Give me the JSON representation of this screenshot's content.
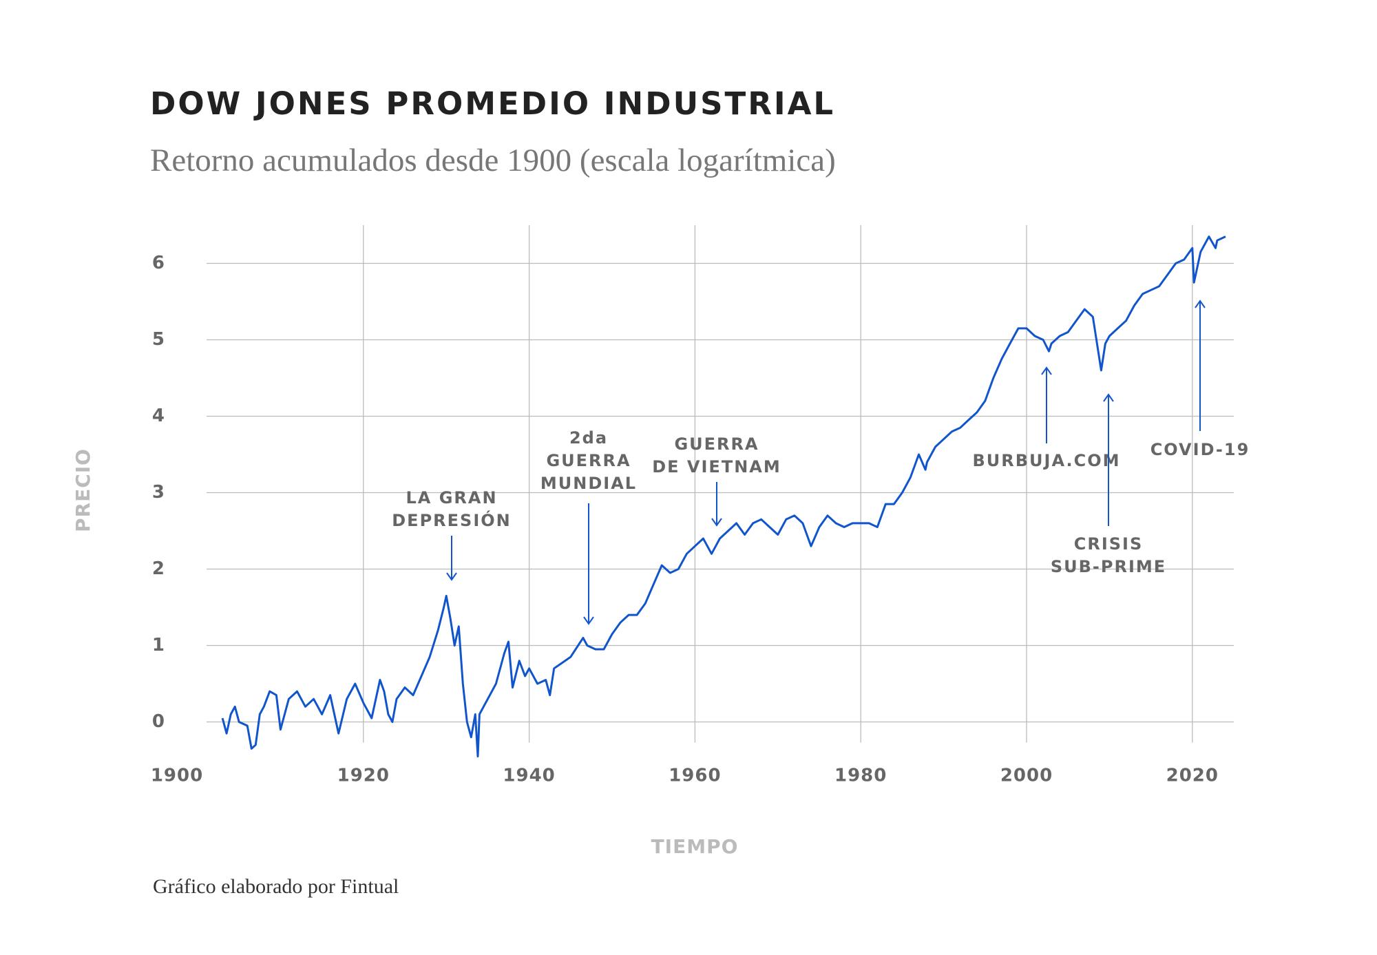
{
  "chart_data": {
    "type": "line",
    "title": "DOW JONES PROMEDIO INDUSTRIAL",
    "subtitle": "Retorno acumulados desde 1900 (escala logarítmica)",
    "x_label": "TIEMPO",
    "y_label": "PRECIO",
    "footer": "Gráfico elaborado por Fintual",
    "xlim": [
      1900,
      2025
    ],
    "ylim": [
      -0.5,
      6.5
    ],
    "xticks": [
      1900,
      1920,
      1940,
      1960,
      1980,
      2000,
      2020
    ],
    "yticks": [
      0,
      1,
      2,
      3,
      4,
      5,
      6
    ],
    "grid": true,
    "annotations": [
      {
        "lines": [
          "LA GRAN",
          "DEPRESIÓN"
        ]
      },
      {
        "lines": [
          "2da",
          "GUERRA",
          "MUNDIAL"
        ]
      },
      {
        "lines": [
          "GUERRA",
          "DE VIETNAM"
        ]
      },
      {
        "lines": [
          "BURBUJA.COM"
        ]
      },
      {
        "lines": [
          "CRISIS",
          "SUB-PRIME"
        ]
      },
      {
        "lines": [
          "COVID-19"
        ]
      }
    ],
    "series": [
      {
        "name": "Dow Jones",
        "color": "#1155cc",
        "x": [
          1903,
          1903.5,
          1904,
          1904.5,
          1905,
          1906,
          1906.5,
          1907,
          1907.5,
          1908,
          1908.7,
          1909.5,
          1910,
          1911,
          1912,
          1913,
          1914,
          1915,
          1916,
          1917,
          1918,
          1919,
          1920,
          1921,
          1922,
          1922.5,
          1923,
          1923.5,
          1924,
          1925,
          1926,
          1927,
          1928,
          1929,
          1929.7,
          1930,
          1930.5,
          1931,
          1931.5,
          1932,
          1932.5,
          1933,
          1933.5,
          1933.8,
          1934,
          1935,
          1936,
          1937,
          1937.5,
          1938,
          1938.8,
          1939.5,
          1940,
          1941,
          1942,
          1942.5,
          1943,
          1945,
          1946.5,
          1947,
          1948,
          1949,
          1950,
          1951,
          1952,
          1953,
          1954,
          1955,
          1956,
          1957,
          1958,
          1959,
          1960,
          1961,
          1962,
          1963,
          1964,
          1965,
          1966,
          1967,
          1968,
          1969,
          1970,
          1971,
          1972,
          1973,
          1974,
          1975,
          1976,
          1977,
          1978,
          1979,
          1980,
          1981,
          1982,
          1983,
          1984,
          1985,
          1986,
          1987,
          1987.8,
          1988,
          1989,
          1990,
          1991,
          1992,
          1993,
          1994,
          1995,
          1996,
          1997,
          1998,
          1999,
          2000,
          2001,
          2002,
          2002.7,
          2003,
          2004,
          2005,
          2006,
          2007,
          2008,
          2009,
          2009.5,
          2010,
          2011,
          2012,
          2013,
          2014,
          2015,
          2016,
          2017,
          2018,
          2019,
          2020,
          2020.2,
          2021,
          2022,
          2022.8,
          2023,
          2024
        ],
        "values": [
          0.05,
          -0.15,
          0.1,
          0.2,
          0.0,
          -0.05,
          -0.35,
          -0.3,
          0.1,
          0.2,
          0.4,
          0.35,
          -0.1,
          0.3,
          0.4,
          0.2,
          0.3,
          0.1,
          0.35,
          -0.15,
          0.3,
          0.5,
          0.25,
          0.05,
          0.55,
          0.4,
          0.1,
          0.0,
          0.3,
          0.45,
          0.35,
          0.6,
          0.85,
          1.2,
          1.5,
          1.65,
          1.35,
          1.0,
          1.25,
          0.5,
          0.0,
          -0.2,
          0.1,
          -0.45,
          0.1,
          0.3,
          0.5,
          0.9,
          1.05,
          0.45,
          0.8,
          0.6,
          0.7,
          0.5,
          0.55,
          0.35,
          0.7,
          0.85,
          1.1,
          1.0,
          0.95,
          0.95,
          1.15,
          1.3,
          1.4,
          1.4,
          1.55,
          1.8,
          2.05,
          1.95,
          2.0,
          2.2,
          2.3,
          2.4,
          2.2,
          2.4,
          2.5,
          2.6,
          2.45,
          2.6,
          2.65,
          2.55,
          2.45,
          2.65,
          2.7,
          2.6,
          2.3,
          2.55,
          2.7,
          2.6,
          2.55,
          2.6,
          2.6,
          2.6,
          2.55,
          2.85,
          2.85,
          3.0,
          3.2,
          3.5,
          3.3,
          3.4,
          3.6,
          3.7,
          3.8,
          3.85,
          3.95,
          4.05,
          4.2,
          4.5,
          4.75,
          4.95,
          5.15,
          5.15,
          5.05,
          5.0,
          4.85,
          4.95,
          5.05,
          5.1,
          5.25,
          5.4,
          5.3,
          4.6,
          4.95,
          5.05,
          5.15,
          5.25,
          5.45,
          5.6,
          5.65,
          5.7,
          5.85,
          6.0,
          6.05,
          6.2,
          5.75,
          6.15,
          6.35,
          6.2,
          6.3,
          6.35
        ]
      }
    ]
  }
}
